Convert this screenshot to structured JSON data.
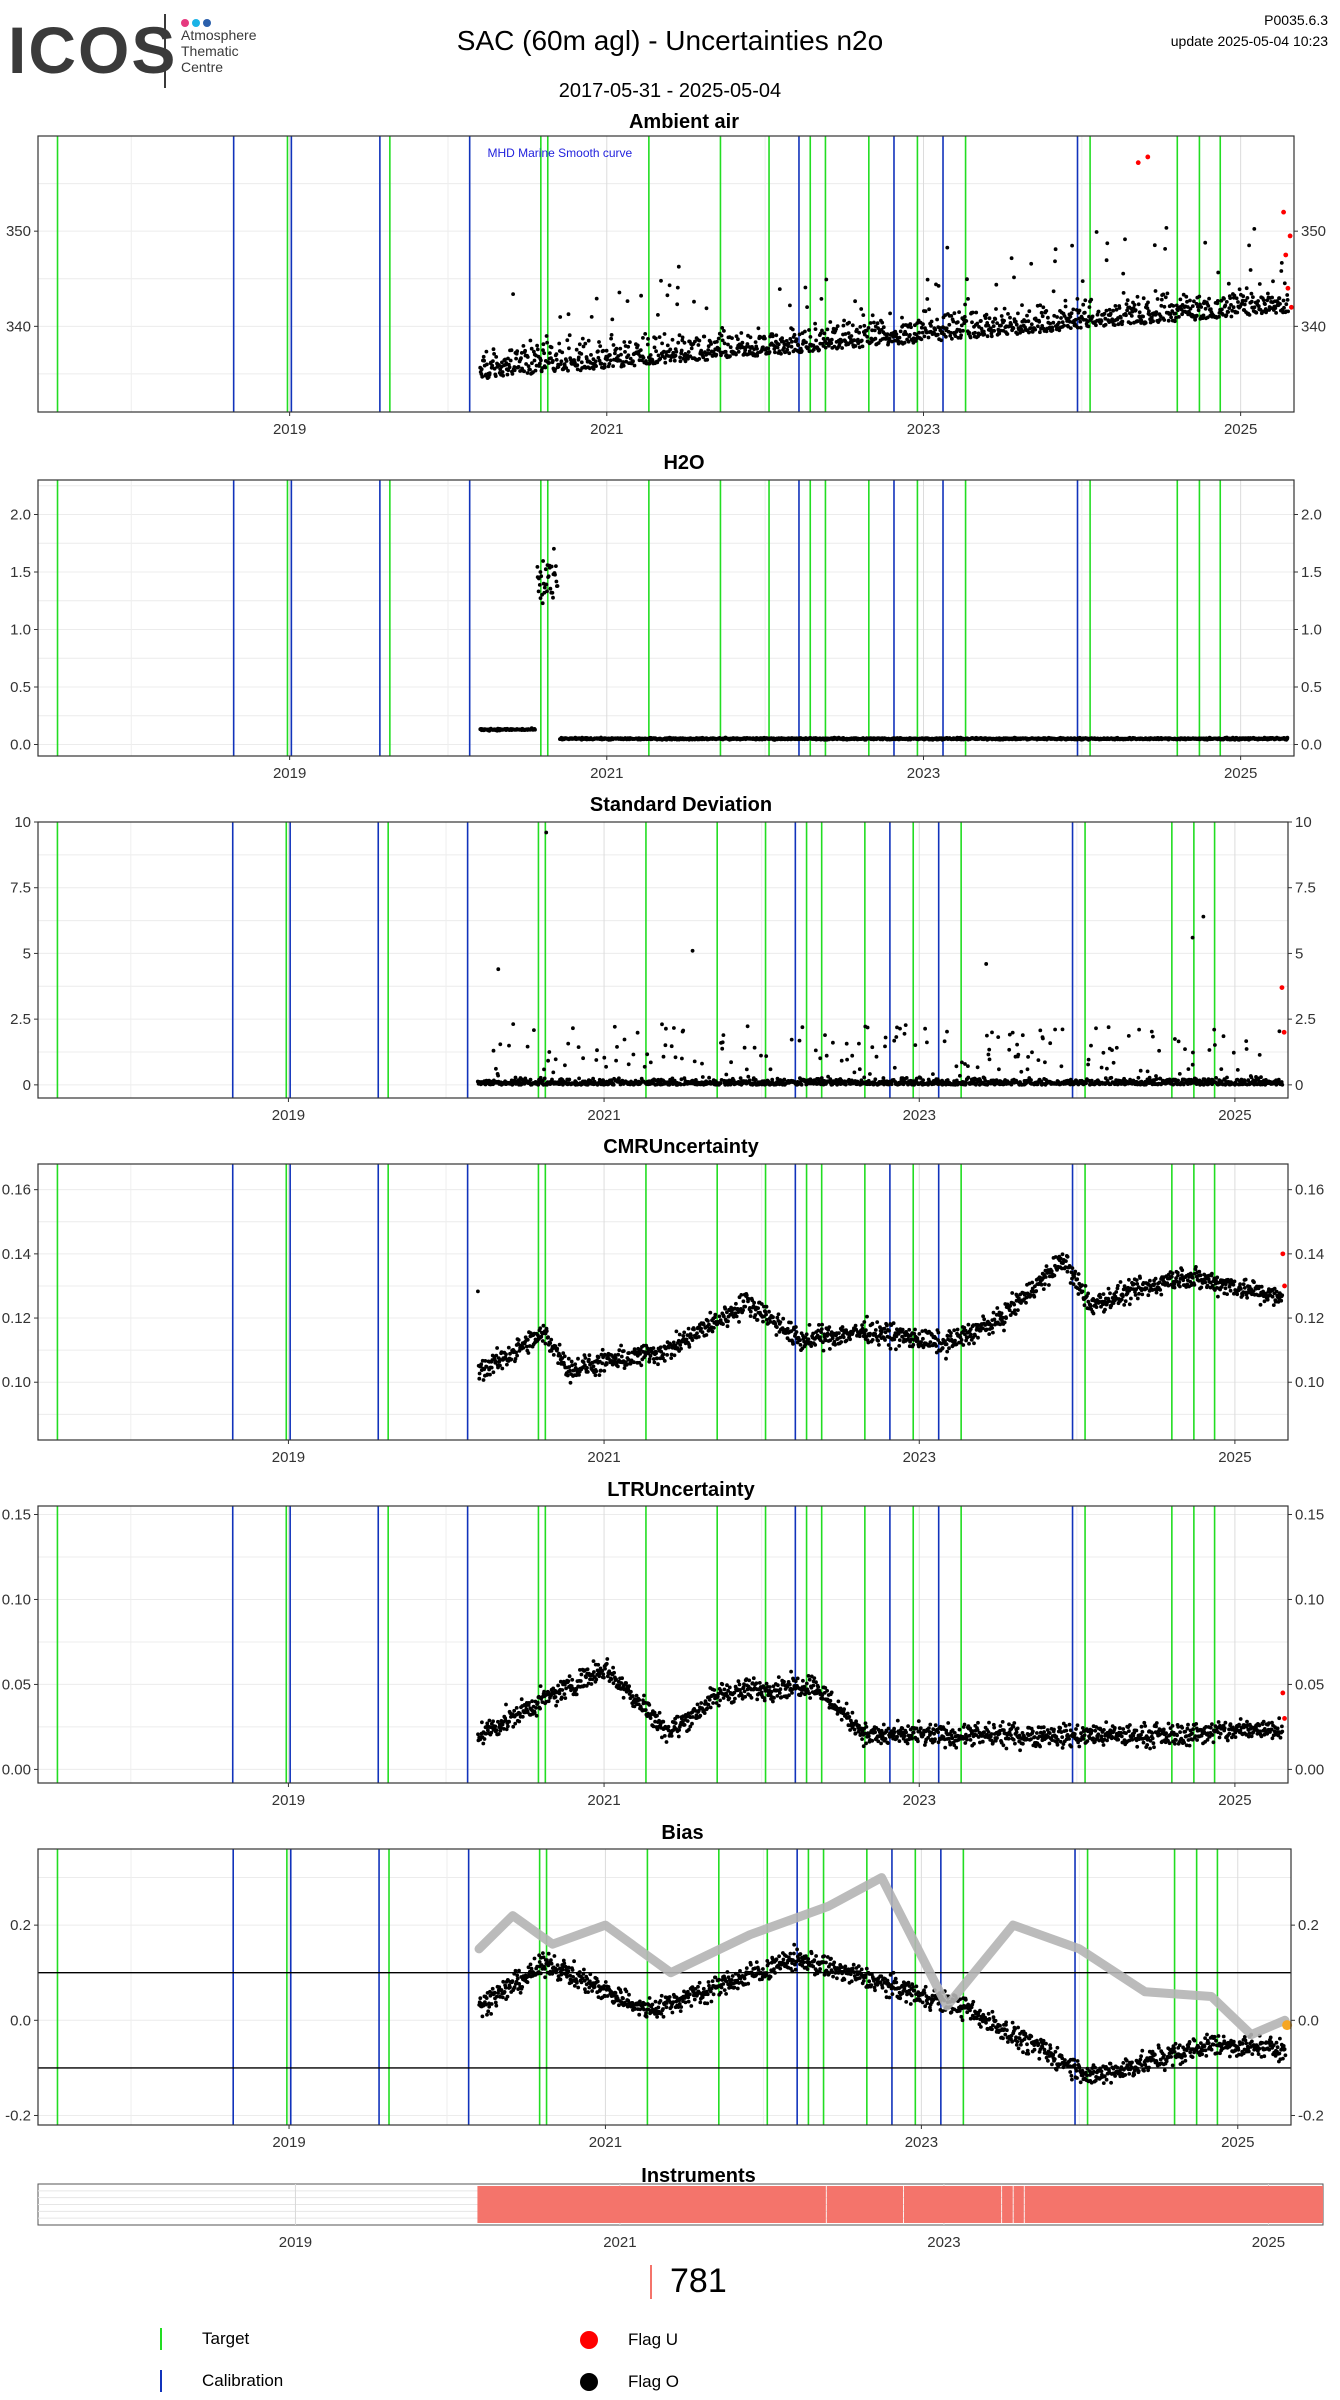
{
  "header": {
    "logo_text": "ICOS",
    "logo_lines": [
      "Atmosphere",
      "Thematic",
      "Centre"
    ],
    "logo_dot_colors": [
      "#e6397f",
      "#1ab3e6",
      "#2b5fab"
    ],
    "title": "SAC  (60m agl) - Uncertainties n2o",
    "date_range": "2017-05-31 - 2025-05-04",
    "version": "P0035.6.3",
    "update": "update  2025-05-04 10:23"
  },
  "colors": {
    "target": "#22dd22",
    "calibration": "#1133bb",
    "flag_u": "#ff0000",
    "flag_o": "#000000",
    "bias_smooth": "#b4b4b4",
    "instrument": "#f4746b",
    "annotation": "#2222dd"
  },
  "events": {
    "target": [
      "2017-07-15",
      "2018-12-27",
      "2019-08-20",
      "2020-08-02",
      "2020-08-18",
      "2021-04-08",
      "2021-09-20",
      "2022-01-10",
      "2022-04-15",
      "2022-05-20",
      "2022-08-28",
      "2022-12-18",
      "2023-04-08",
      "2024-01-20",
      "2024-08-08",
      "2024-09-28",
      "2024-11-15"
    ],
    "calibration": [
      "2018-08-25",
      "2019-01-05",
      "2019-07-28",
      "2020-02-20",
      "2022-03-20",
      "2022-10-25",
      "2023-02-15",
      "2023-12-22"
    ]
  },
  "chart_data": [
    {
      "type": "scatter",
      "title": "Ambient air",
      "annotation": "MHD Marine Smooth curve",
      "ylim": [
        331,
        360
      ],
      "y_ticks": [
        340,
        350
      ],
      "grid": true,
      "series": [
        {
          "name": "Flag O",
          "trend": {
            "start": "2020-03-15",
            "end": "2025-04-20",
            "y0": 334.5,
            "y1": 341.5
          }
        },
        {
          "name": "Flag U",
          "x": [
            "2024-05-10",
            "2024-06-01",
            "2025-04-10",
            "2025-04-15",
            "2025-04-20",
            "2025-04-25",
            "2025-04-28"
          ],
          "y": [
            357.2,
            357.8,
            352.0,
            347.5,
            344.0,
            349.5,
            342.0
          ]
        }
      ],
      "x_ticks": [
        "2019",
        "2021",
        "2023",
        "2025"
      ]
    },
    {
      "type": "scatter",
      "title": "H2O",
      "ylim": [
        -0.1,
        2.3
      ],
      "y_ticks": [
        0.0,
        0.5,
        1.0,
        1.5,
        2.0
      ],
      "grid": true,
      "series": [
        {
          "name": "Flag O",
          "segments": [
            {
              "start": "2020-03-15",
              "end": "2020-07-20",
              "level": 0.13
            },
            {
              "start": "2020-07-25",
              "end": "2020-09-10",
              "level": 1.4
            },
            {
              "start": "2020-09-15",
              "end": "2025-04-20",
              "level": 0.05
            }
          ]
        }
      ],
      "x_ticks": [
        "2019",
        "2021",
        "2023",
        "2025"
      ]
    },
    {
      "type": "scatter",
      "title": "Standard Deviation",
      "ylim": [
        -0.5,
        10.0
      ],
      "y_ticks": [
        0.0,
        2.5,
        5.0,
        7.5,
        10.0
      ],
      "grid": true,
      "series": [
        {
          "name": "Flag O",
          "outliers": [
            [
              "2020-08-20",
              9.6
            ],
            [
              "2024-10-20",
              6.4
            ],
            [
              "2024-09-25",
              5.6
            ],
            [
              "2021-07-25",
              5.1
            ],
            [
              "2023-06-05",
              4.6
            ],
            [
              "2020-05-01",
              4.4
            ]
          ]
        },
        {
          "name": "Flag U",
          "x": [
            "2025-04-20",
            "2025-04-25"
          ],
          "y": [
            3.7,
            2.0
          ]
        }
      ],
      "x_ticks": [
        "2019",
        "2021",
        "2023",
        "2025"
      ]
    },
    {
      "type": "scatter",
      "title": "CMRUncertainty",
      "ylim": [
        0.082,
        0.168
      ],
      "y_ticks": [
        0.1,
        0.12,
        0.14,
        0.16
      ],
      "grid": true,
      "series": [
        {
          "name": "Flag O",
          "level_points": [
            [
              "2020-03-15",
              0.103
            ],
            [
              "2020-08-15",
              0.115
            ],
            [
              "2020-10-15",
              0.104
            ],
            [
              "2021-06-01",
              0.11
            ],
            [
              "2021-12-01",
              0.125
            ],
            [
              "2022-04-01",
              0.113
            ],
            [
              "2022-09-01",
              0.116
            ],
            [
              "2023-03-01",
              0.112
            ],
            [
              "2023-07-01",
              0.119
            ],
            [
              "2023-12-01",
              0.138
            ],
            [
              "2024-02-01",
              0.124
            ],
            [
              "2024-09-01",
              0.133
            ],
            [
              "2025-01-01",
              0.13
            ],
            [
              "2025-04-20",
              0.126
            ]
          ]
        },
        {
          "name": "Flag U",
          "x": [
            "2025-04-22",
            "2025-04-26"
          ],
          "y": [
            0.14,
            0.13
          ]
        }
      ],
      "x_ticks": [
        "2019",
        "2021",
        "2023",
        "2025"
      ]
    },
    {
      "type": "scatter",
      "title": "LTRUncertainty",
      "ylim": [
        -0.008,
        0.155
      ],
      "y_ticks": [
        0.0,
        0.05,
        0.1,
        0.15
      ],
      "grid": true,
      "series": [
        {
          "name": "Flag O",
          "level_points": [
            [
              "2020-03-15",
              0.02
            ],
            [
              "2020-08-10",
              0.04
            ],
            [
              "2021-01-01",
              0.06
            ],
            [
              "2021-06-01",
              0.022
            ],
            [
              "2021-10-01",
              0.045
            ],
            [
              "2022-05-01",
              0.05
            ],
            [
              "2022-09-01",
              0.02
            ],
            [
              "2023-06-01",
              0.02
            ],
            [
              "2024-08-01",
              0.02
            ],
            [
              "2025-04-20",
              0.025
            ]
          ]
        },
        {
          "name": "Flag U",
          "x": [
            "2025-04-22",
            "2025-04-26"
          ],
          "y": [
            0.045,
            0.03
          ]
        }
      ],
      "x_ticks": [
        "2019",
        "2021",
        "2023",
        "2025"
      ]
    },
    {
      "type": "scatter",
      "title": "Bias",
      "ylim": [
        -0.22,
        0.36
      ],
      "y_ticks": [
        -0.2,
        0.0,
        0.2
      ],
      "hlines": [
        -0.1,
        0.1
      ],
      "grid": true,
      "series": [
        {
          "name": "Flag O",
          "level_points": [
            [
              "2020-03-15",
              0.03
            ],
            [
              "2020-08-20",
              0.12
            ],
            [
              "2021-04-10",
              0.02
            ],
            [
              "2022-03-20",
              0.13
            ],
            [
              "2023-04-01",
              0.03
            ],
            [
              "2024-02-01",
              -0.12
            ],
            [
              "2024-11-01",
              -0.05
            ],
            [
              "2025-04-20",
              -0.06
            ]
          ]
        },
        {
          "name": "smooth",
          "x": [
            "2020-03-15",
            "2020-06-01",
            "2020-09-01",
            "2021-01-01",
            "2021-06-01",
            "2021-12-01",
            "2022-06-01",
            "2022-10-01",
            "2023-03-01",
            "2023-08-01",
            "2024-01-01",
            "2024-06-01",
            "2024-11-01",
            "2025-02-01",
            "2025-04-20"
          ],
          "y": [
            0.15,
            0.22,
            0.16,
            0.2,
            0.1,
            0.18,
            0.24,
            0.3,
            0.03,
            0.2,
            0.15,
            0.06,
            0.05,
            -0.03,
            0.0
          ]
        },
        {
          "name": "flag",
          "x": [
            "2025-04-25"
          ],
          "y": [
            -0.01
          ]
        }
      ],
      "x_ticks": [
        "2019",
        "2021",
        "2023",
        "2025"
      ]
    },
    {
      "type": "bar",
      "title": "Instruments",
      "segments": [
        [
          "2020-02-15",
          "2022-04-10"
        ],
        [
          "2022-04-12",
          "2022-10-01"
        ],
        [
          "2022-10-03",
          "2023-05-10"
        ],
        [
          "2023-05-12",
          "2023-06-05"
        ],
        [
          "2023-06-07",
          "2023-06-30"
        ],
        [
          "2023-07-02",
          "2025-05-04"
        ]
      ],
      "x_ticks": [
        "2019",
        "2021",
        "2023",
        "2025"
      ]
    }
  ],
  "count": "781",
  "legend": {
    "target_label": "Target",
    "calibration_label": "Calibration",
    "flag_u_label": "Flag U",
    "flag_o_label": "Flag O"
  }
}
